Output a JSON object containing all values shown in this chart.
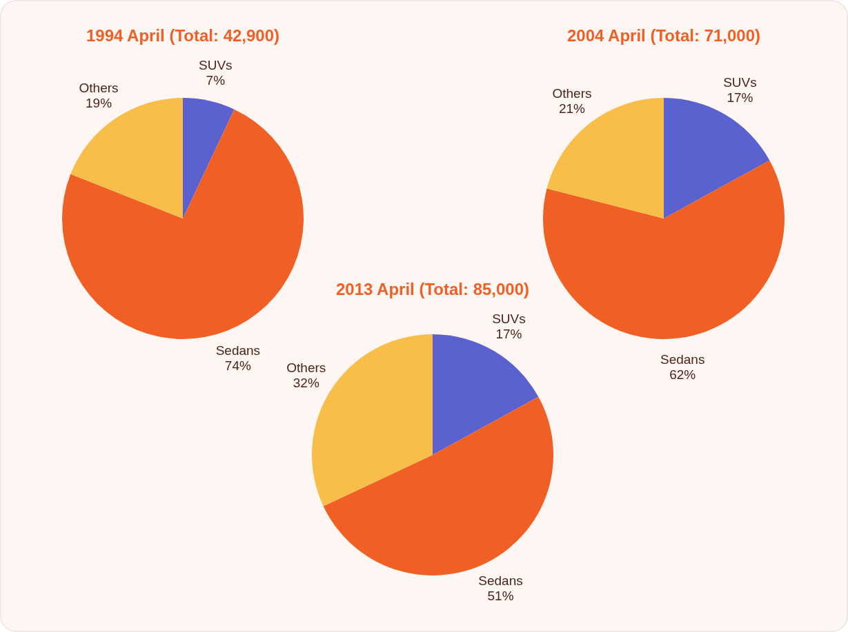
{
  "chart_data": [
    {
      "type": "pie",
      "title": "1994 April (Total: 42,900)",
      "categories": [
        "SUVs",
        "Sedans",
        "Others"
      ],
      "values": [
        7,
        74,
        19
      ],
      "value_labels": [
        "7%",
        "74%",
        "19%"
      ],
      "colors": [
        "#5b62cf",
        "#f06025",
        "#f9be4a"
      ]
    },
    {
      "type": "pie",
      "title": "2004 April (Total: 71,000)",
      "categories": [
        "SUVs",
        "Sedans",
        "Others"
      ],
      "values": [
        17,
        62,
        21
      ],
      "value_labels": [
        "17%",
        "62%",
        "21%"
      ],
      "colors": [
        "#5b62cf",
        "#f06025",
        "#f9be4a"
      ]
    },
    {
      "type": "pie",
      "title": "2013 April (Total: 85,000)",
      "categories": [
        "SUVs",
        "Sedans",
        "Others"
      ],
      "values": [
        17,
        51,
        32
      ],
      "value_labels": [
        "17%",
        "51%",
        "32%"
      ],
      "colors": [
        "#5b62cf",
        "#f06025",
        "#f9be4a"
      ]
    }
  ]
}
